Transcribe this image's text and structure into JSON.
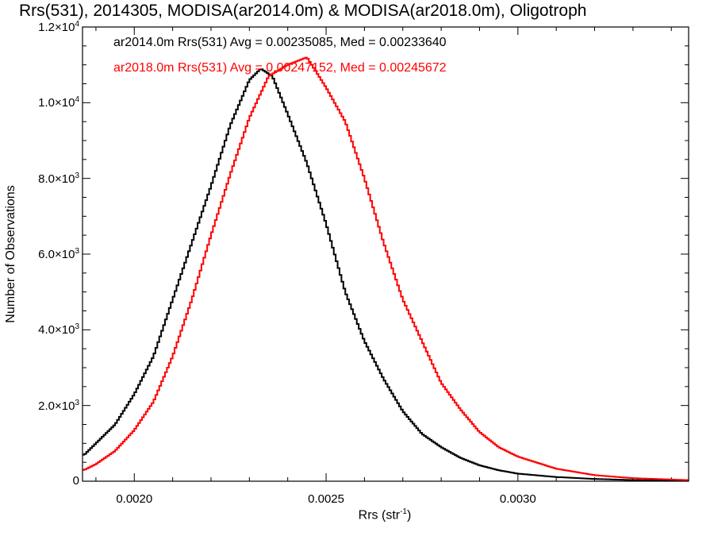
{
  "chart_data": {
    "type": "line",
    "title": "Rrs(531), 2014305, MODISA(ar2014.0m) & MODISA(ar2018.0m), Oligotroph",
    "xlabel": "Rrs (str",
    "xlabel_sup": "-1",
    "xlabel_close": ")",
    "ylabel": "Number of Observations",
    "xlim": [
      0.001865,
      0.003445
    ],
    "ylim": [
      0,
      12000
    ],
    "xticks": [
      {
        "value": 0.002,
        "label": "0.0020"
      },
      {
        "value": 0.0025,
        "label": "0.0025"
      },
      {
        "value": 0.003,
        "label": "0.0030"
      }
    ],
    "yticks": [
      {
        "value": 0,
        "mant": "0",
        "exp": ""
      },
      {
        "value": 2000,
        "mant": "2.0×10",
        "exp": "3"
      },
      {
        "value": 4000,
        "mant": "4.0×10",
        "exp": "3"
      },
      {
        "value": 6000,
        "mant": "6.0×10",
        "exp": "3"
      },
      {
        "value": 8000,
        "mant": "8.0×10",
        "exp": "3"
      },
      {
        "value": 10000,
        "mant": "1.0×10",
        "exp": "4"
      },
      {
        "value": 12000,
        "mant": "1.2×10",
        "exp": "4"
      }
    ],
    "series": [
      {
        "name": "ar2014.0m",
        "color": "#000000",
        "legend_text": "ar2014.0m Rrs(531) Avg = 0.00235085, Med = 0.00233640",
        "x": [
          0.00187,
          0.0019,
          0.00195,
          0.002,
          0.00205,
          0.0021,
          0.00215,
          0.0022,
          0.00225,
          0.0023,
          0.00233,
          0.00236,
          0.0024,
          0.00245,
          0.0025,
          0.00255,
          0.0026,
          0.00265,
          0.0027,
          0.00275,
          0.0028,
          0.00285,
          0.0029,
          0.00295,
          0.003,
          0.0031,
          0.0032,
          0.0033,
          0.00344
        ],
        "values": [
          700,
          1000,
          1500,
          2300,
          3300,
          4800,
          6300,
          7800,
          9400,
          10600,
          10900,
          10700,
          9700,
          8400,
          6800,
          5000,
          3700,
          2700,
          1850,
          1250,
          900,
          620,
          420,
          290,
          200,
          110,
          60,
          30,
          10
        ]
      },
      {
        "name": "ar2018.0m",
        "color": "#ff0000",
        "legend_text": "ar2018.0m Rrs(531) Avg = 0.00247152, Med = 0.00245672",
        "x": [
          0.00187,
          0.0019,
          0.00195,
          0.002,
          0.00205,
          0.0021,
          0.00215,
          0.0022,
          0.00225,
          0.0023,
          0.00235,
          0.0024,
          0.00245,
          0.0025,
          0.00255,
          0.0026,
          0.00265,
          0.0027,
          0.00275,
          0.0028,
          0.00285,
          0.0029,
          0.00295,
          0.003,
          0.0031,
          0.0032,
          0.0033,
          0.00344
        ],
        "values": [
          300,
          450,
          800,
          1350,
          2100,
          3300,
          4800,
          6500,
          8100,
          9600,
          10700,
          11000,
          11200,
          10400,
          9500,
          8000,
          6300,
          4800,
          3700,
          2600,
          1900,
          1300,
          900,
          650,
          330,
          160,
          80,
          30
        ]
      }
    ],
    "grid": false,
    "legend_position": "top-left"
  }
}
